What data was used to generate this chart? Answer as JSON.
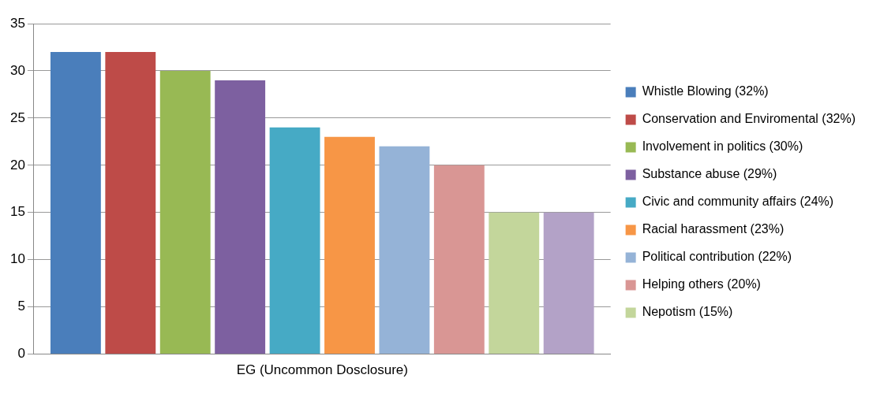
{
  "chart_data": {
    "type": "bar",
    "categories": [
      "EG (Uncommon Dosclosure)"
    ],
    "series": [
      {
        "name": "Whistle Blowing (32%)",
        "color": "#4a7ebb",
        "values": [
          32
        ]
      },
      {
        "name": "Conservation and Enviromental (32%)",
        "color": "#be4b48",
        "values": [
          32
        ]
      },
      {
        "name": "Involvement in politics (30%)",
        "color": "#98b954",
        "values": [
          30
        ]
      },
      {
        "name": "Substance abuse (29%)",
        "color": "#7d60a0",
        "values": [
          29
        ]
      },
      {
        "name": "Civic and community affairs (24%)",
        "color": "#46aac5",
        "values": [
          24
        ]
      },
      {
        "name": "Racial harassment (23%)",
        "color": "#f79646",
        "values": [
          23
        ]
      },
      {
        "name": "Political contribution (22%)",
        "color": "#95b3d7",
        "values": [
          22
        ]
      },
      {
        "name": "Helping others (20%)",
        "color": "#d99694",
        "values": [
          20
        ]
      },
      {
        "name": "Nepotism (15%)",
        "color": "#c3d69b",
        "values": [
          15
        ]
      },
      {
        "color": "#b3a2c7",
        "values": [
          15
        ]
      }
    ],
    "ylim": [
      0,
      35
    ],
    "yticks": [
      0,
      5,
      10,
      15,
      20,
      25,
      30,
      35
    ],
    "grid": "y",
    "legend": "right"
  }
}
